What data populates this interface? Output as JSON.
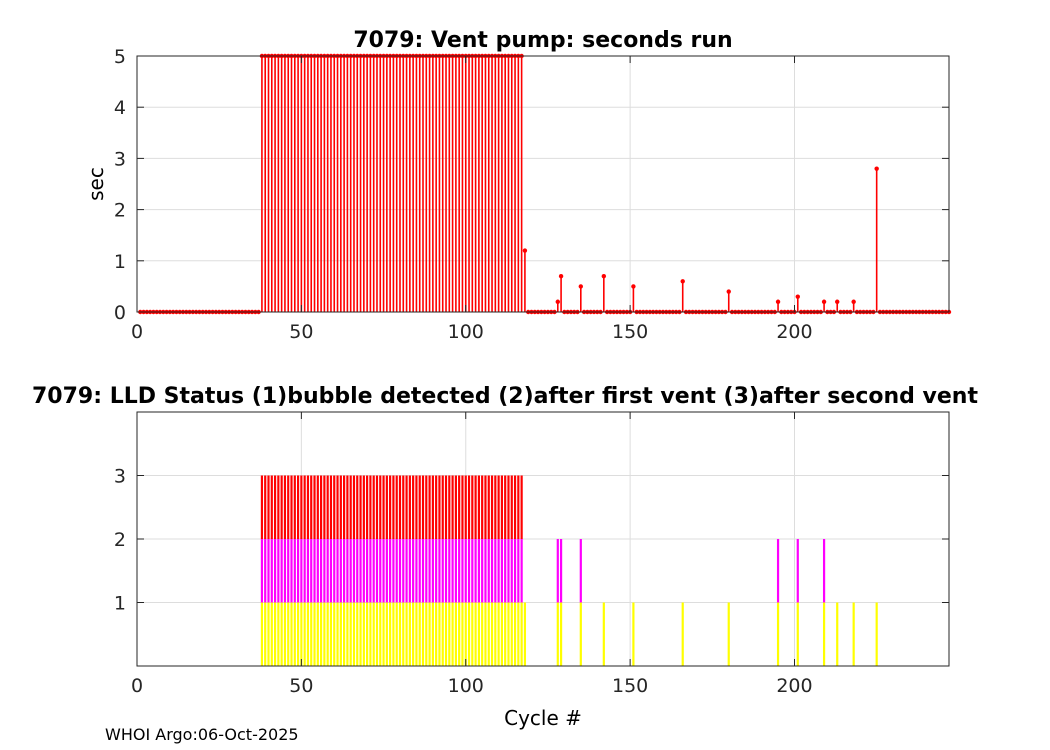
{
  "footer_text": "WHOI Argo:06-Oct-2025",
  "chart_data": [
    {
      "type": "stem",
      "title": "7079: Vent pump: seconds run",
      "xlabel": "",
      "ylabel": "sec",
      "xlim": [
        0,
        247
      ],
      "ylim": [
        0,
        5
      ],
      "xticks": [
        0,
        50,
        100,
        150,
        200
      ],
      "yticks": [
        0,
        1,
        2,
        3,
        4,
        5
      ],
      "grid": true,
      "color": "#ff0000",
      "x_range": [
        1,
        247
      ],
      "baseline_value": 0,
      "saturated_range": [
        38,
        117
      ],
      "saturated_value": 5,
      "points": [
        {
          "x": 118,
          "y": 1.2
        },
        {
          "x": 128,
          "y": 0.2
        },
        {
          "x": 129,
          "y": 0.7
        },
        {
          "x": 135,
          "y": 0.5
        },
        {
          "x": 142,
          "y": 0.7
        },
        {
          "x": 151,
          "y": 0.5
        },
        {
          "x": 166,
          "y": 0.6
        },
        {
          "x": 180,
          "y": 0.4
        },
        {
          "x": 195,
          "y": 0.2
        },
        {
          "x": 201,
          "y": 0.3
        },
        {
          "x": 209,
          "y": 0.2
        },
        {
          "x": 213,
          "y": 0.2
        },
        {
          "x": 218,
          "y": 0.2
        },
        {
          "x": 225,
          "y": 2.8
        }
      ]
    },
    {
      "type": "bar",
      "title": "7079: LLD Status   (1)bubble detected   (2)after first vent  (3)after second vent",
      "xlabel": "Cycle #",
      "ylabel": "",
      "xlim": [
        0,
        247
      ],
      "ylim": [
        0,
        4
      ],
      "xticks": [
        0,
        50,
        100,
        150,
        200
      ],
      "yticks": [
        1,
        2,
        3
      ],
      "grid": true,
      "colors": {
        "1": "#ffff00",
        "2": "#ff00ff",
        "3": "#ff0000"
      },
      "full_range": [
        38,
        117
      ],
      "full_range_value": 3,
      "bars": [
        {
          "x": 118,
          "value": 1
        },
        {
          "x": 128,
          "value": 2
        },
        {
          "x": 129,
          "value": 2
        },
        {
          "x": 135,
          "value": 2
        },
        {
          "x": 142,
          "value": 1
        },
        {
          "x": 151,
          "value": 1
        },
        {
          "x": 166,
          "value": 1
        },
        {
          "x": 180,
          "value": 1
        },
        {
          "x": 195,
          "value": 2
        },
        {
          "x": 201,
          "value": 2
        },
        {
          "x": 209,
          "value": 2
        },
        {
          "x": 213,
          "value": 1
        },
        {
          "x": 218,
          "value": 1
        },
        {
          "x": 225,
          "value": 1
        }
      ]
    }
  ]
}
